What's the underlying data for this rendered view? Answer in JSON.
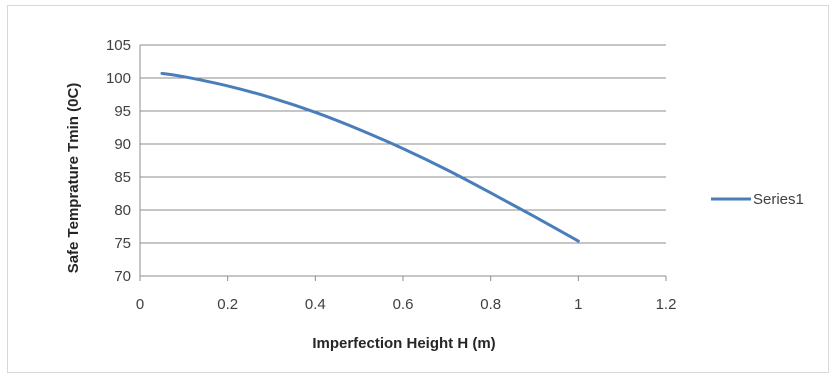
{
  "chart_data": {
    "type": "line",
    "xlabel": "Imperfection Height H (m)",
    "ylabel": "Safe Temprature Tmin (0C)",
    "xlim": [
      0,
      1.2
    ],
    "ylim": [
      70,
      105
    ],
    "x_ticks": [
      "0",
      "0.2",
      "0.4",
      "0.6",
      "0.8",
      "1",
      "1.2"
    ],
    "y_ticks": [
      "70",
      "75",
      "80",
      "85",
      "90",
      "95",
      "100",
      "105"
    ],
    "grid": "horizontal",
    "legend_position": "right",
    "series": [
      {
        "name": "Series1",
        "color": "#4a7ebb",
        "x": [
          0.05,
          0.1,
          0.2,
          0.3,
          0.4,
          0.5,
          0.6,
          0.7,
          0.8,
          0.9,
          1.0
        ],
        "y": [
          100.7,
          100.2,
          98.8,
          97.0,
          94.8,
          92.2,
          89.3,
          86.1,
          82.6,
          79.0,
          75.3
        ]
      }
    ]
  }
}
